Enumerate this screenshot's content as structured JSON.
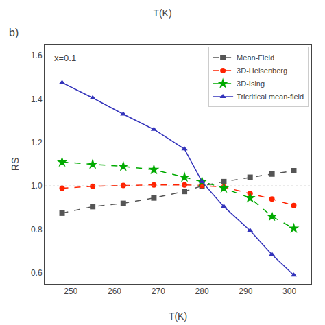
{
  "chart_data": {
    "type": "line",
    "title": "T(K)",
    "xlabel": "T(K)",
    "ylabel": "RS",
    "annotations": [
      "x=0.1",
      "b)"
    ],
    "x": [
      248,
      255,
      262,
      269,
      276,
      280,
      285,
      291,
      296,
      301
    ],
    "series": [
      {
        "name": "Mean-Field",
        "color": "#555555",
        "marker": "square",
        "line_style": "dashed",
        "values": [
          0.875,
          0.905,
          0.92,
          0.945,
          0.975,
          1.0,
          1.02,
          1.04,
          1.055,
          1.07
        ]
      },
      {
        "name": "3D-Heisenberg",
        "color": "#ff2200",
        "marker": "circle",
        "line_style": "dashed",
        "values": [
          0.99,
          0.998,
          1.002,
          1.005,
          1.005,
          1.002,
          0.995,
          0.965,
          0.94,
          0.91
        ]
      },
      {
        "name": "3D-Ising",
        "color": "#00aa00",
        "marker": "star",
        "line_style": "dashed",
        "values": [
          1.11,
          1.1,
          1.09,
          1.075,
          1.04,
          1.02,
          0.99,
          0.945,
          0.86,
          0.805
        ]
      },
      {
        "name": "Tricritical mean-field",
        "color": "#3333bb",
        "marker": "triangle-up",
        "line_style": "solid",
        "values": [
          1.475,
          1.405,
          1.33,
          1.26,
          1.17,
          1.02,
          0.905,
          0.795,
          0.685,
          0.59
        ]
      }
    ],
    "reference_line": 1.0,
    "xlim": [
      244,
      305
    ],
    "ylim": [
      0.55,
      1.65
    ],
    "xticks": [
      250,
      260,
      270,
      280,
      290,
      300
    ],
    "yticks": [
      0.6,
      0.8,
      {
        "value": 1.0,
        "label": "1.0"
      },
      1.2,
      1.4,
      1.6
    ],
    "grid": false,
    "legend": "upper right"
  }
}
